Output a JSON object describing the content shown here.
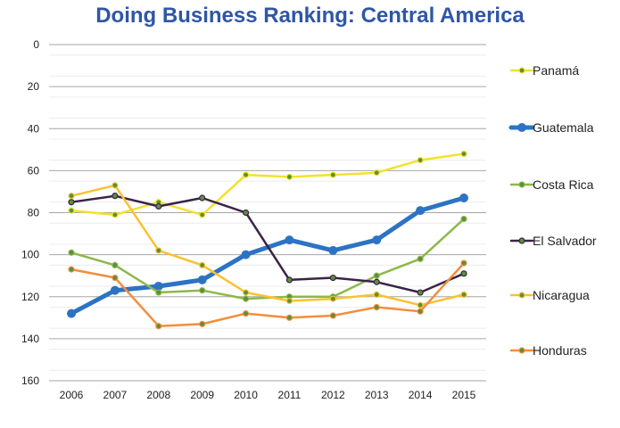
{
  "chart_data": {
    "type": "line",
    "title": "Doing Business Ranking: Central America",
    "x": [
      "2006",
      "2007",
      "2008",
      "2009",
      "2010",
      "2011",
      "2012",
      "2013",
      "2014",
      "2015"
    ],
    "ylim": [
      0,
      160
    ],
    "y_inverted": true,
    "y_ticks": [
      "0",
      "20",
      "40",
      "60",
      "80",
      "100",
      "120",
      "140",
      "160"
    ],
    "grid": "horizontal",
    "legend_position": "right",
    "series": [
      {
        "name": "Panamá",
        "color": "#F2E22A",
        "values": [
          79,
          81,
          75,
          81,
          62,
          63,
          62,
          61,
          55,
          52
        ]
      },
      {
        "name": "Guatemala",
        "color": "#2C73C5",
        "values": [
          128,
          117,
          115,
          112,
          100,
          93,
          98,
          93,
          79,
          73
        ]
      },
      {
        "name": "Costa Rica",
        "color": "#8DB84A",
        "values": [
          99,
          105,
          118,
          117,
          121,
          120,
          120,
          110,
          102,
          83
        ]
      },
      {
        "name": "El Salvador",
        "color": "#3A2346",
        "values": [
          75,
          72,
          77,
          73,
          80,
          112,
          111,
          113,
          118,
          109
        ]
      },
      {
        "name": "Nicaragua",
        "color": "#FAC231",
        "values": [
          72,
          67,
          98,
          105,
          118,
          122,
          121,
          119,
          124,
          119
        ]
      },
      {
        "name": "Honduras",
        "color": "#F28E3D",
        "values": [
          107,
          111,
          134,
          133,
          128,
          130,
          129,
          125,
          127,
          104
        ]
      }
    ]
  }
}
